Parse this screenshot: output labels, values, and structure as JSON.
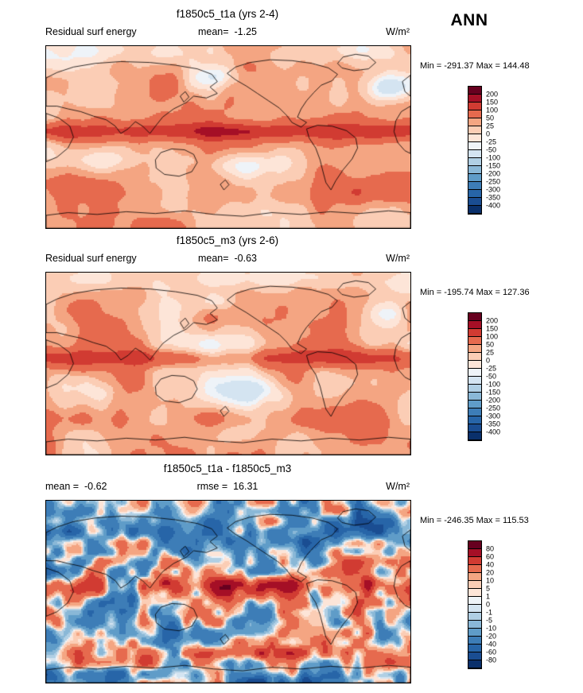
{
  "header": {
    "season": "ANN"
  },
  "panels": [
    {
      "title": "f1850c5_t1a (yrs 2-4)",
      "left_text": "Residual surf energy",
      "center_text": "mean=  -1.25",
      "units": "W/m²",
      "minmax": "Min = -291.37 Max = 144.48",
      "colorbar_labels": [
        "200",
        "150",
        "100",
        "50",
        "25",
        "0",
        "-25",
        "-50",
        "-100",
        "-150",
        "-200",
        "-250",
        "-300",
        "-350",
        "-400"
      ]
    },
    {
      "title": "f1850c5_m3 (yrs 2-6)",
      "left_text": "Residual surf energy",
      "center_text": "mean=  -0.63",
      "units": "W/m²",
      "minmax": "Min = -195.74 Max = 127.36",
      "colorbar_labels": [
        "200",
        "150",
        "100",
        "50",
        "25",
        "0",
        "-25",
        "-50",
        "-100",
        "-150",
        "-200",
        "-250",
        "-300",
        "-350",
        "-400"
      ]
    },
    {
      "title": "f1850c5_t1a - f1850c5_m3",
      "left_text": "mean =  -0.62",
      "center_text": "rmse =  16.31",
      "units": "W/m²",
      "minmax": "Min = -246.35 Max = 115.53",
      "colorbar_labels": [
        "80",
        "60",
        "40",
        "20",
        "10",
        "5",
        "1",
        "0",
        "-1",
        "-5",
        "-10",
        "-20",
        "-40",
        "-60",
        "-80"
      ]
    }
  ],
  "colors": {
    "background": "#ffffff",
    "coastline": "#000000",
    "palette": [
      "#67001f",
      "#a50f26",
      "#d13b32",
      "#e66a4e",
      "#f4a582",
      "#fbcdb5",
      "#fde5d8",
      "#eef3f8",
      "#d4e4f1",
      "#b0cfe4",
      "#8ab8d7",
      "#5f9cc8",
      "#3d7db7",
      "#2765a8",
      "#1a4d92",
      "#0a306b"
    ]
  },
  "chart_data": {
    "type": "heatmap",
    "subtype": "global-lat-lon-map-panels",
    "variable": "Residual surf energy",
    "units": "W/m²",
    "season": "ANN",
    "legend_position": "right",
    "panels": [
      {
        "title": "f1850c5_t1a (yrs 2-4)",
        "mean": -1.25,
        "min": -291.37,
        "max": 144.48,
        "levels": [
          200,
          150,
          100,
          50,
          25,
          0,
          -25,
          -50,
          -100,
          -150,
          -200,
          -250,
          -300,
          -350,
          -400
        ]
      },
      {
        "title": "f1850c5_m3 (yrs 2-6)",
        "mean": -0.63,
        "min": -195.74,
        "max": 127.36,
        "levels": [
          200,
          150,
          100,
          50,
          25,
          0,
          -25,
          -50,
          -100,
          -150,
          -200,
          -250,
          -300,
          -350,
          -400
        ]
      },
      {
        "title": "f1850c5_t1a - f1850c5_m3",
        "mean": -0.62,
        "rmse": 16.31,
        "min": -246.35,
        "max": 115.53,
        "levels": [
          80,
          60,
          40,
          20,
          10,
          5,
          1,
          0,
          -1,
          -5,
          -10,
          -20,
          -40,
          -60,
          -80
        ]
      }
    ]
  }
}
